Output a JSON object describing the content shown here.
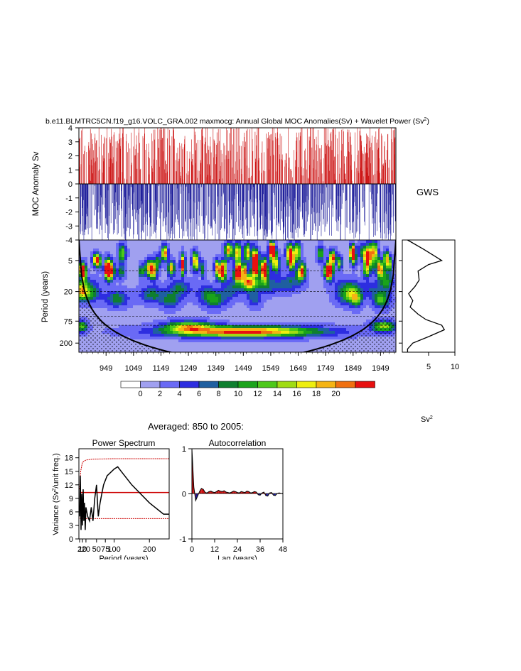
{
  "figure": {
    "title_main": "b.e11.BLMTRC5CN.f19_g16.VOLC_GRA.002 maxmocg: Annual Global MOC Anomalies(Sv) + Wavelet Power (Sv",
    "title_sup": "2",
    "title_end": ")",
    "averaged_label": "Averaged: 850 to 2005:",
    "units_label": "Sv",
    "units_sup": "2"
  },
  "colors": {
    "positive": "#cc1111",
    "negative": "#1a1a99",
    "line": "#000000",
    "conf": "#cc0000",
    "palette": [
      "#ffffff",
      "#a0a0f0",
      "#6a6af5",
      "#2d2de0",
      "#1f5fa0",
      "#0f7f2f",
      "#1aa31a",
      "#4dc81a",
      "#a0dc14",
      "#eeee10",
      "#f5b414",
      "#f07010",
      "#e81010"
    ]
  },
  "chart_data": [
    {
      "id": "moc-anomaly",
      "type": "bar",
      "ylabel": "MOC Anomaly Sv",
      "ylim": [
        -4,
        4
      ],
      "yticks": [
        "4",
        "3",
        "2",
        "1",
        "0",
        "-1",
        "-2",
        "-3",
        "-4"
      ],
      "x_range": [
        850,
        2005
      ],
      "note": "annual anomaly series rendered as red (positive) / blue (negative) bars"
    },
    {
      "id": "wavelet-power",
      "type": "heatmap",
      "ylabel": "Period (years)",
      "yticks": [
        "5",
        "20",
        "75",
        "200"
      ],
      "xticks": [
        "949",
        "1049",
        "1149",
        "1249",
        "1349",
        "1449",
        "1549",
        "1649",
        "1749",
        "1849",
        "1949"
      ],
      "x_range": [
        850,
        2005
      ],
      "colorbar_labels": [
        "0",
        "2",
        "4",
        "6",
        "8",
        "10",
        "12",
        "14",
        "16",
        "18",
        "20"
      ],
      "features": [
        {
          "x_center": 1450,
          "x_half_width": 260,
          "period": 120,
          "power": 22
        },
        {
          "x_center": 1250,
          "x_half_width": 80,
          "period": 95,
          "power": 14
        },
        {
          "x_center": 1960,
          "x_half_width": 40,
          "period": 95,
          "power": 14
        },
        {
          "x_center": 860,
          "x_half_width": 20,
          "period": 95,
          "power": 12
        }
      ]
    },
    {
      "id": "gws",
      "type": "line",
      "title": "GWS",
      "xticks": [
        "5",
        "10"
      ],
      "xlim": [
        0,
        10
      ],
      "profile": [
        {
          "period": 2,
          "power": 1.0
        },
        {
          "period": 3,
          "power": 4.0
        },
        {
          "period": 4,
          "power": 6.0
        },
        {
          "period": 5,
          "power": 7.5
        },
        {
          "period": 6,
          "power": 5.0
        },
        {
          "period": 8,
          "power": 3.0
        },
        {
          "period": 12,
          "power": 3.2
        },
        {
          "period": 16,
          "power": 2.4
        },
        {
          "period": 22,
          "power": 1.2
        },
        {
          "period": 30,
          "power": 2.0
        },
        {
          "period": 40,
          "power": 1.5
        },
        {
          "period": 55,
          "power": 3.0
        },
        {
          "period": 70,
          "power": 4.5
        },
        {
          "period": 90,
          "power": 7.5
        },
        {
          "period": 110,
          "power": 8.0
        },
        {
          "period": 150,
          "power": 5.0
        },
        {
          "period": 200,
          "power": 2.0
        },
        {
          "period": 260,
          "power": 1.0
        },
        {
          "period": 300,
          "power": 1.0
        }
      ]
    },
    {
      "id": "power-spectrum",
      "type": "line",
      "title": "Power Spectrum",
      "xlabel": "Period (years)",
      "ylabel_main": "Variance (Sv",
      "ylabel_sup": "2",
      "ylabel_end": "/unit freq.)",
      "xticks": [
        "2",
        "10",
        "20",
        "50",
        "75",
        "100",
        "200"
      ],
      "yticks": [
        "0",
        "3",
        "6",
        "9",
        "12",
        "15",
        "18"
      ],
      "ylim": [
        0,
        20
      ],
      "xlim": [
        0,
        256
      ],
      "series": [
        {
          "name": "spectrum",
          "x": [
            2,
            4,
            6,
            8,
            10,
            12,
            14,
            16,
            18,
            20,
            25,
            30,
            35,
            40,
            45,
            50,
            55,
            60,
            65,
            70,
            80,
            100,
            110,
            120,
            150,
            200,
            240,
            256
          ],
          "y": [
            5,
            14,
            2,
            10,
            3,
            11,
            4,
            8,
            2,
            7,
            5,
            4,
            7,
            4,
            9,
            12,
            5,
            8,
            10,
            12,
            14,
            15.5,
            16,
            15,
            12,
            8,
            5.5,
            5.5
          ]
        },
        {
          "name": "red-noise",
          "x": [
            2,
            10,
            50,
            100,
            200,
            256
          ],
          "y": [
            10.3,
            10.3,
            10.3,
            10.3,
            10.3,
            10.3
          ]
        },
        {
          "name": "upper-95",
          "x": [
            2,
            5,
            10,
            20,
            40,
            100,
            200,
            256
          ],
          "y": [
            11,
            15,
            17,
            17.5,
            17.7,
            17.8,
            17.8,
            17.8
          ]
        },
        {
          "name": "lower-95",
          "x": [
            2,
            10,
            30,
            100,
            200,
            256
          ],
          "y": [
            4.6,
            4.5,
            4.5,
            4.5,
            4.5,
            4.5
          ]
        }
      ]
    },
    {
      "id": "autocorrelation",
      "type": "area",
      "title": "Autocorrelation",
      "xlabel": "Lag (years)",
      "xticks": [
        "0",
        "12",
        "24",
        "36",
        "48"
      ],
      "yticks": [
        "1",
        "0",
        "-1"
      ],
      "ylim": [
        -1,
        1
      ],
      "xlim": [
        0,
        48
      ],
      "lags": [
        0,
        1,
        2,
        3,
        4,
        5,
        6,
        7,
        8,
        9,
        10,
        11,
        12,
        13,
        14,
        15,
        16,
        17,
        18,
        19,
        20,
        21,
        22,
        23,
        24,
        25,
        26,
        27,
        28,
        29,
        30,
        31,
        32,
        33,
        34,
        35,
        36,
        37,
        38,
        39,
        40,
        41,
        42,
        43,
        44,
        45,
        46,
        47,
        48
      ],
      "values": [
        1.0,
        0.15,
        -0.15,
        -0.05,
        0.05,
        0.12,
        0.1,
        0.03,
        0.02,
        0.05,
        0.06,
        0.04,
        0.03,
        0.05,
        0.08,
        0.06,
        0.05,
        0.07,
        0.04,
        0.03,
        0.02,
        0.04,
        0.06,
        0.05,
        0.03,
        0.02,
        0.05,
        0.04,
        0.03,
        0.06,
        0.05,
        0.02,
        0.03,
        0.05,
        0.04,
        -0.02,
        -0.03,
        0.02,
        0.04,
        -0.04,
        -0.05,
        0.02,
        0.03,
        -0.03,
        -0.04,
        0.01,
        0.02,
        0.01,
        0.0
      ]
    }
  ]
}
